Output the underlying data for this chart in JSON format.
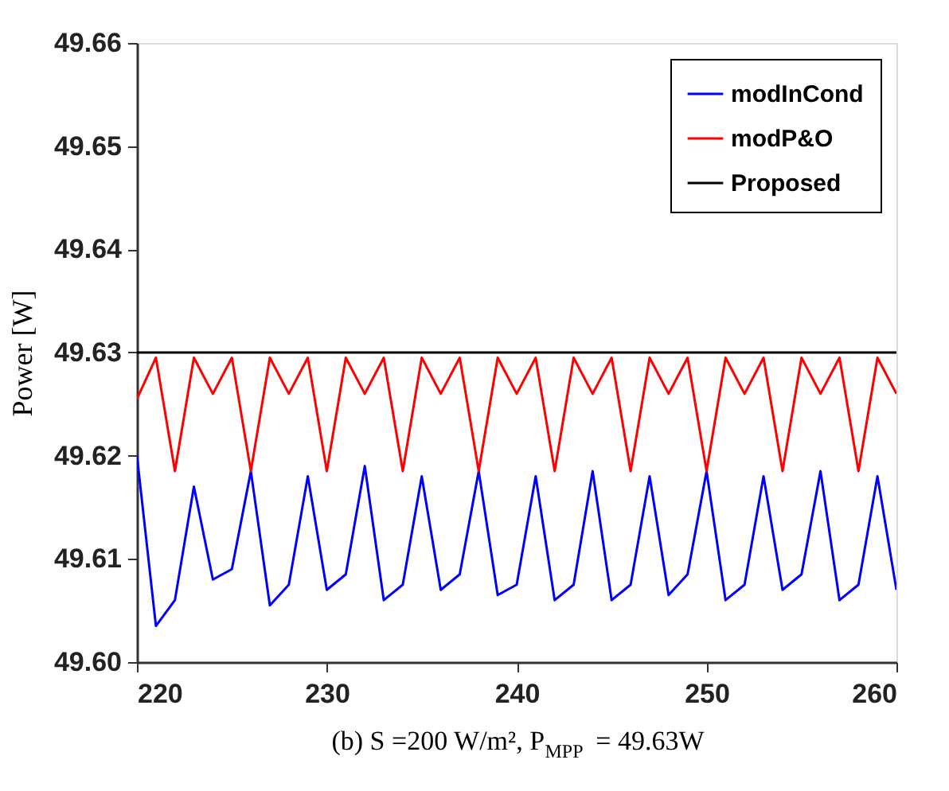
{
  "chart_data": {
    "type": "line",
    "title": "(b) S =200 W/m², P$_{MPP}$ = 49.63W",
    "ylabel": "Power [W]",
    "x": [
      220,
      221,
      222,
      223,
      224,
      225,
      226,
      227,
      228,
      229,
      230,
      231,
      232,
      233,
      234,
      235,
      236,
      237,
      238,
      239,
      240,
      241,
      242,
      243,
      244,
      245,
      246,
      247,
      248,
      249,
      250,
      251,
      252,
      253,
      254,
      255,
      256,
      257,
      258,
      259,
      260
    ],
    "series": [
      {
        "name": "modInCond",
        "color": "#0000ff",
        "values": [
          49.62,
          49.6035,
          49.606,
          49.617,
          49.608,
          49.609,
          49.6185,
          49.6055,
          49.6075,
          49.618,
          49.607,
          49.6085,
          49.619,
          49.606,
          49.6075,
          49.618,
          49.607,
          49.6085,
          49.6185,
          49.6065,
          49.6075,
          49.618,
          49.606,
          49.6075,
          49.6185,
          49.606,
          49.6075,
          49.618,
          49.6065,
          49.6085,
          49.6185,
          49.606,
          49.6075,
          49.618,
          49.607,
          49.6085,
          49.6185,
          49.606,
          49.6075,
          49.618,
          49.607
        ]
      },
      {
        "name": "modP&O",
        "color": "#ff0000",
        "values": [
          49.6255,
          49.6295,
          49.6185,
          49.6295,
          49.626,
          49.6295,
          49.6185,
          49.6295,
          49.626,
          49.6295,
          49.6185,
          49.6295,
          49.626,
          49.6295,
          49.6185,
          49.6295,
          49.626,
          49.6295,
          49.6185,
          49.6295,
          49.626,
          49.6295,
          49.6185,
          49.6295,
          49.626,
          49.6295,
          49.6185,
          49.6295,
          49.626,
          49.6295,
          49.6185,
          49.6295,
          49.626,
          49.6295,
          49.6185,
          49.6295,
          49.626,
          49.6295,
          49.6185,
          49.6295,
          49.626
        ]
      },
      {
        "name": "Proposed",
        "color": "#000000",
        "values": [
          49.63,
          49.63,
          49.63,
          49.63,
          49.63,
          49.63,
          49.63,
          49.63,
          49.63,
          49.63,
          49.63,
          49.63,
          49.63,
          49.63,
          49.63,
          49.63,
          49.63,
          49.63,
          49.63,
          49.63,
          49.63,
          49.63,
          49.63,
          49.63,
          49.63,
          49.63,
          49.63,
          49.63,
          49.63,
          49.63,
          49.63,
          49.63,
          49.63,
          49.63,
          49.63,
          49.63,
          49.63,
          49.63,
          49.63,
          49.63,
          49.63
        ]
      }
    ],
    "xlim": [
      220,
      260
    ],
    "xticks": [
      220,
      230,
      240,
      250,
      260
    ],
    "ylim": [
      49.6,
      49.66
    ],
    "yticks": [
      {
        "value": 49.6,
        "label": "49.60"
      },
      49.61,
      49.62,
      49.63,
      49.64,
      49.65,
      49.66
    ],
    "grid": false,
    "legend": "top right",
    "marker": "none",
    "line_style": "solid"
  }
}
